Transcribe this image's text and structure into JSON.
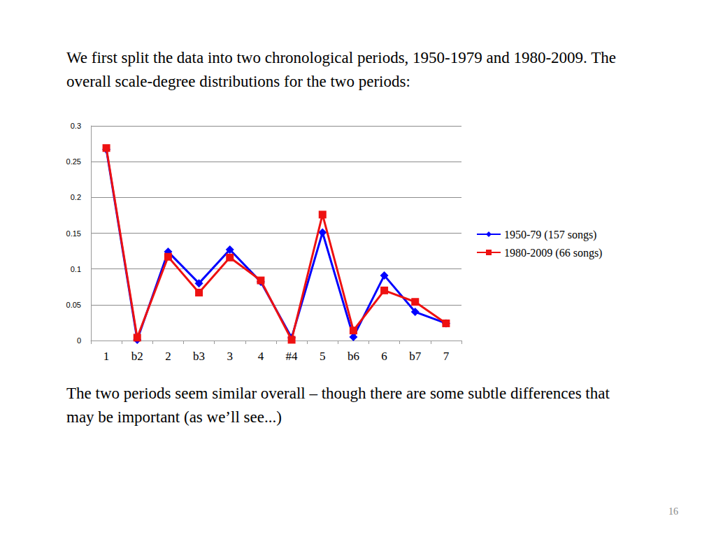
{
  "page": {
    "heading": "We first split the data into two chronological periods, 1950-1979 and 1980-2009. The overall scale-degree distributions for the two periods:",
    "caption": "The two periods seem similar overall – though there are some subtle differences that may be important (as we’ll see...)",
    "number": 16
  },
  "chart_data": {
    "type": "line",
    "categories": [
      "1",
      "b2",
      "2",
      "b3",
      "3",
      "4",
      "#4",
      "5",
      "b6",
      "6",
      "b7",
      "7"
    ],
    "series": [
      {
        "name": "1950-79 (157 songs)",
        "color": "#0000ff",
        "marker": "diamond",
        "values": [
          0.267,
          0.001,
          0.124,
          0.08,
          0.127,
          0.082,
          0.004,
          0.151,
          0.005,
          0.091,
          0.04,
          0.024
        ]
      },
      {
        "name": "1980-2009 (66 songs)",
        "color": "#ee1111",
        "marker": "square",
        "values": [
          0.269,
          0.004,
          0.117,
          0.067,
          0.116,
          0.084,
          0.001,
          0.176,
          0.014,
          0.07,
          0.054,
          0.024
        ]
      }
    ],
    "ylim": [
      0,
      0.3
    ],
    "yticks": [
      0,
      0.05,
      0.1,
      0.15,
      0.2,
      0.25,
      0.3
    ],
    "grid": true,
    "legend": "right"
  }
}
